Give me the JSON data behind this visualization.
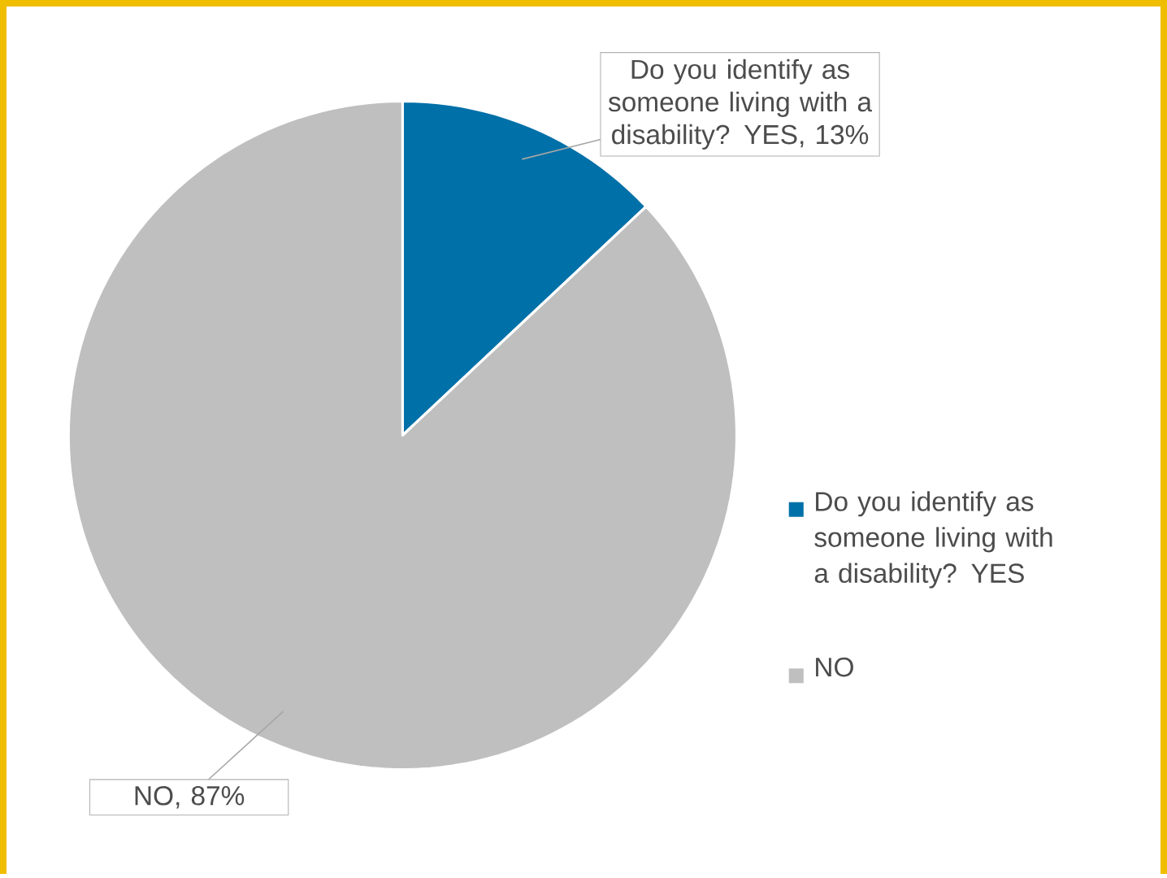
{
  "chart_data": {
    "type": "pie",
    "categories": [
      "Do you identify as someone living with a disability? YES",
      "NO"
    ],
    "values": [
      13,
      87
    ],
    "colors": [
      "#0070a8",
      "#bfbfbf"
    ],
    "value_labels": [
      "Do you identify as someone living with a disability? YES, 13%",
      "NO, 87%"
    ],
    "legend": "right"
  }
}
